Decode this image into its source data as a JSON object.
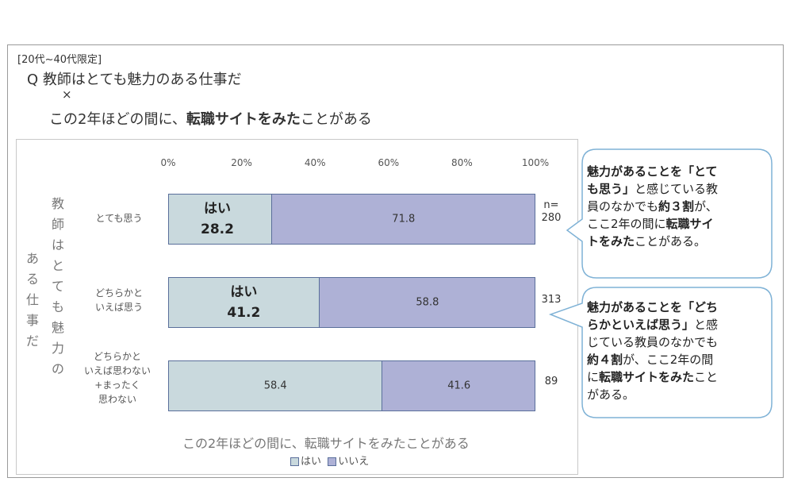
{
  "header": {
    "tag": "[20代~40代限定]",
    "question": "Q 教師はとても魅力のある仕事だ",
    "cross": "×",
    "condition_pre": "この2年ほどの間に、",
    "condition_bold": "転職サイトをみた",
    "condition_post": "ことがある"
  },
  "row_axis_title": {
    "col1": [
      "あ",
      "る",
      "仕",
      "事",
      "だ"
    ],
    "col2": [
      "教",
      "師",
      "は",
      "と",
      "て",
      "も",
      "魅",
      "力",
      "の"
    ]
  },
  "categories_display": [
    [
      "とても思う"
    ],
    [
      "どちらかと",
      "いえば思う"
    ],
    [
      "どちらかと",
      "いえば思わない",
      "+まったく",
      "思わない"
    ]
  ],
  "n_labels": {
    "prefix": "n=",
    "values": [
      "280",
      "313",
      "89"
    ]
  },
  "yes_word": "はい",
  "x_title": "この2年ほどの間に、転職サイトをみたことがある",
  "legend": {
    "yes": "はい",
    "no": "いいえ"
  },
  "colors": {
    "yes": "#c9d9dd",
    "no": "#aeb1d6",
    "border": "#5a6f9b",
    "callout": "#7fb2d6"
  },
  "callouts": [
    {
      "line1_bold": "魅力があることを「とて",
      "line2_bold": "も思う」",
      "line2_rest": "と感じている教",
      "line3_pre": "員のなかでも",
      "line3_bold": "約３割",
      "line3_post": "が、",
      "line4_pre": "ここ2年の間に",
      "line4_bold": "転職サイ",
      "line5_bold": "トをみた",
      "line5_post": "ことがある。"
    },
    {
      "line1_bold": "魅力があることを「どち",
      "line2_bold": "らかといえば思う」",
      "line2_rest": "と感",
      "line3": "じている教員のなかでも",
      "line4_bold": "約４割",
      "line4_post": "が、ここ2年の間",
      "line5_pre": "に",
      "line5_bold": "転職サイトをみた",
      "line5_post": "こと",
      "line6": "がある。"
    }
  ],
  "chart_data": {
    "type": "bar",
    "orientation": "horizontal",
    "stacked": true,
    "percent": true,
    "categories": [
      "とても思う",
      "どちらかといえば思う",
      "どちらかといえば思わない+まったく思わない"
    ],
    "series": [
      {
        "name": "はい",
        "values": [
          28.2,
          41.2,
          58.4
        ]
      },
      {
        "name": "いいえ",
        "values": [
          71.8,
          58.8,
          41.6
        ]
      }
    ],
    "xlim": [
      0,
      100
    ],
    "xticks": [
      "0%",
      "20%",
      "40%",
      "60%",
      "80%",
      "100%"
    ],
    "xlabel": "この2年ほどの間に、転職サイトをみたことがある",
    "n": [
      280,
      313,
      89
    ],
    "legend_position": "bottom",
    "grid": false
  }
}
